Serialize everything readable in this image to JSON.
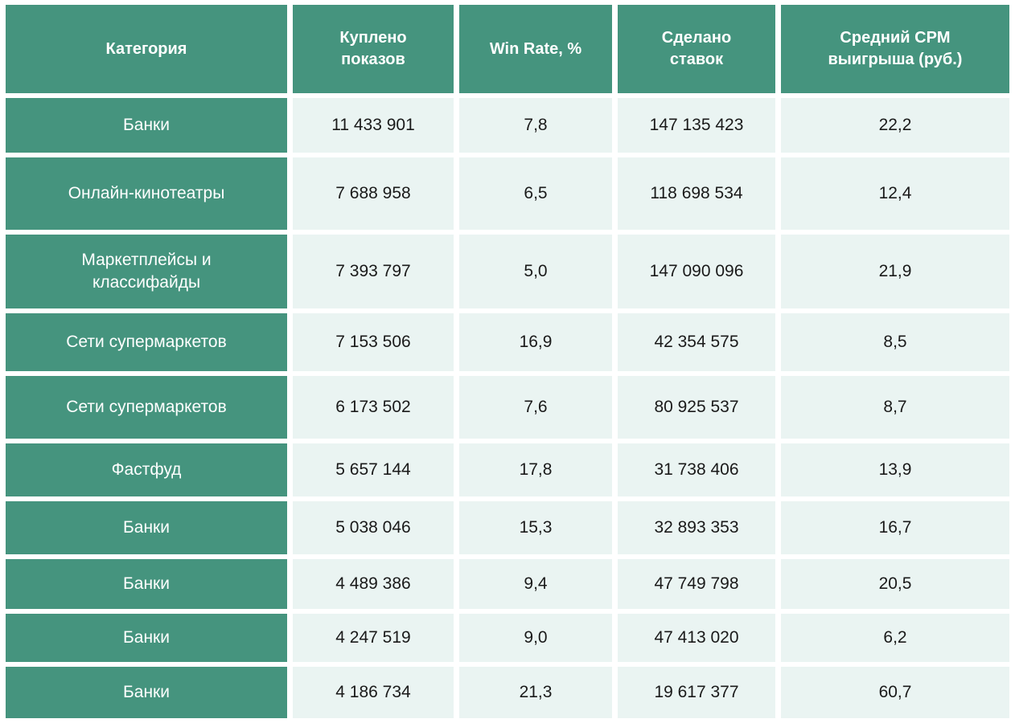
{
  "chart_data": {
    "type": "table",
    "columns": [
      "Категория",
      "Куплено показов",
      "Win Rate, %",
      "Сделано ставок",
      "Средний CPM выигрыша (руб.)"
    ],
    "rows": [
      {
        "category": "Банки",
        "impressions_bought": "11 433 901",
        "win_rate_pct": "7,8",
        "bids_made": "147 135 423",
        "avg_win_cpm_rub": "22,2"
      },
      {
        "category": "Онлайн-кинотеатры",
        "impressions_bought": "7 688 958",
        "win_rate_pct": "6,5",
        "bids_made": "118 698 534",
        "avg_win_cpm_rub": "12,4"
      },
      {
        "category": "Маркетплейсы и классифайды",
        "impressions_bought": "7 393 797",
        "win_rate_pct": "5,0",
        "bids_made": "147 090 096",
        "avg_win_cpm_rub": "21,9"
      },
      {
        "category": "Сети супермаркетов",
        "impressions_bought": "7 153 506",
        "win_rate_pct": "16,9",
        "bids_made": "42 354 575",
        "avg_win_cpm_rub": "8,5"
      },
      {
        "category": "Сети супермаркетов",
        "impressions_bought": "6 173 502",
        "win_rate_pct": "7,6",
        "bids_made": "80 925 537",
        "avg_win_cpm_rub": "8,7"
      },
      {
        "category": "Фастфуд",
        "impressions_bought": "5 657 144",
        "win_rate_pct": "17,8",
        "bids_made": "31 738 406",
        "avg_win_cpm_rub": "13,9"
      },
      {
        "category": "Банки",
        "impressions_bought": "5 038 046",
        "win_rate_pct": "15,3",
        "bids_made": "32 893 353",
        "avg_win_cpm_rub": "16,7"
      },
      {
        "category": "Банки",
        "impressions_bought": "4 489 386",
        "win_rate_pct": "9,4",
        "bids_made": "47 749 798",
        "avg_win_cpm_rub": "20,5"
      },
      {
        "category": "Банки",
        "impressions_bought": "4 247 519",
        "win_rate_pct": "9,0",
        "bids_made": "47 413 020",
        "avg_win_cpm_rub": "6,2"
      },
      {
        "category": "Банки",
        "impressions_bought": "4 186 734",
        "win_rate_pct": "21,3",
        "bids_made": "19 617 377",
        "avg_win_cpm_rub": "60,7"
      }
    ]
  },
  "colors": {
    "header_bg": "#45947E",
    "category_cell_bg": "#45947E",
    "data_cell_bg": "#EAF4F2",
    "header_text": "#FFFFFF",
    "category_text": "#FFFFFF",
    "data_text": "#1A1A1A",
    "gap": "#FFFFFF"
  }
}
